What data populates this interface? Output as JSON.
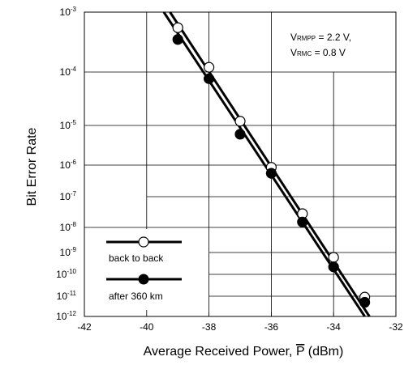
{
  "chart_data": {
    "type": "line",
    "xlabel": "Average Received Power, ",
    "xlabel_symbol": "P",
    "xlabel_unit": " (dBm)",
    "ylabel": "Bit Error Rate",
    "y_scale": "custom-BER",
    "xlim": [
      -42,
      -32
    ],
    "ylim": [
      1e-12,
      0.001
    ],
    "x_ticks": [
      -42,
      -40,
      -38,
      -36,
      -34,
      -32
    ],
    "x_tick_labels": [
      "-42",
      "-40",
      "-38",
      "-36",
      "-34",
      "-32"
    ],
    "y_ticks": [
      {
        "mantissa": "10",
        "exponent": "-3"
      },
      {
        "mantissa": "10",
        "exponent": "-4"
      },
      {
        "mantissa": "10",
        "exponent": "-5"
      },
      {
        "mantissa": "10",
        "exponent": "-6"
      },
      {
        "mantissa": "10",
        "exponent": "-7"
      },
      {
        "mantissa": "10",
        "exponent": "-8"
      },
      {
        "mantissa": "10",
        "exponent": "-9"
      },
      {
        "mantissa": "10",
        "exponent": "-10"
      },
      {
        "mantissa": "10",
        "exponent": "-11"
      },
      {
        "mantissa": "10",
        "exponent": "-12"
      }
    ],
    "grid": true,
    "annotation": {
      "line1_main": "V",
      "line1_sub": "RMPP",
      "line1_rest": " = 2.2 V,",
      "line2_main": "V",
      "line2_sub": "RMC",
      "line2_rest": " = 0.8 V"
    },
    "legend_position": "bottom-left",
    "series": [
      {
        "name": "back to back",
        "marker": "open-circle",
        "x": [
          -39,
          -38,
          -37,
          -36,
          -35,
          -34,
          -33
        ],
        "y": [
          0.00055,
          0.00012,
          1.2e-05,
          8.5e-07,
          2.8e-08,
          6e-10,
          9e-12
        ]
      },
      {
        "name": "after 360 km",
        "marker": "filled-circle",
        "x": [
          -39,
          -38,
          -37,
          -36,
          -35,
          -34,
          -33
        ],
        "y": [
          0.00035,
          7.5e-05,
          6e-06,
          5.5e-07,
          1.5e-08,
          2.2e-10,
          5e-12
        ]
      }
    ],
    "fit_lines": [
      {
        "series": "back to back",
        "x": [
          -39.25,
          -32.85
        ],
        "y": [
          0.001,
          1e-12
        ]
      },
      {
        "series": "after 360 km",
        "x": [
          -39.45,
          -33.0
        ],
        "y": [
          0.001,
          1e-12
        ]
      }
    ]
  }
}
